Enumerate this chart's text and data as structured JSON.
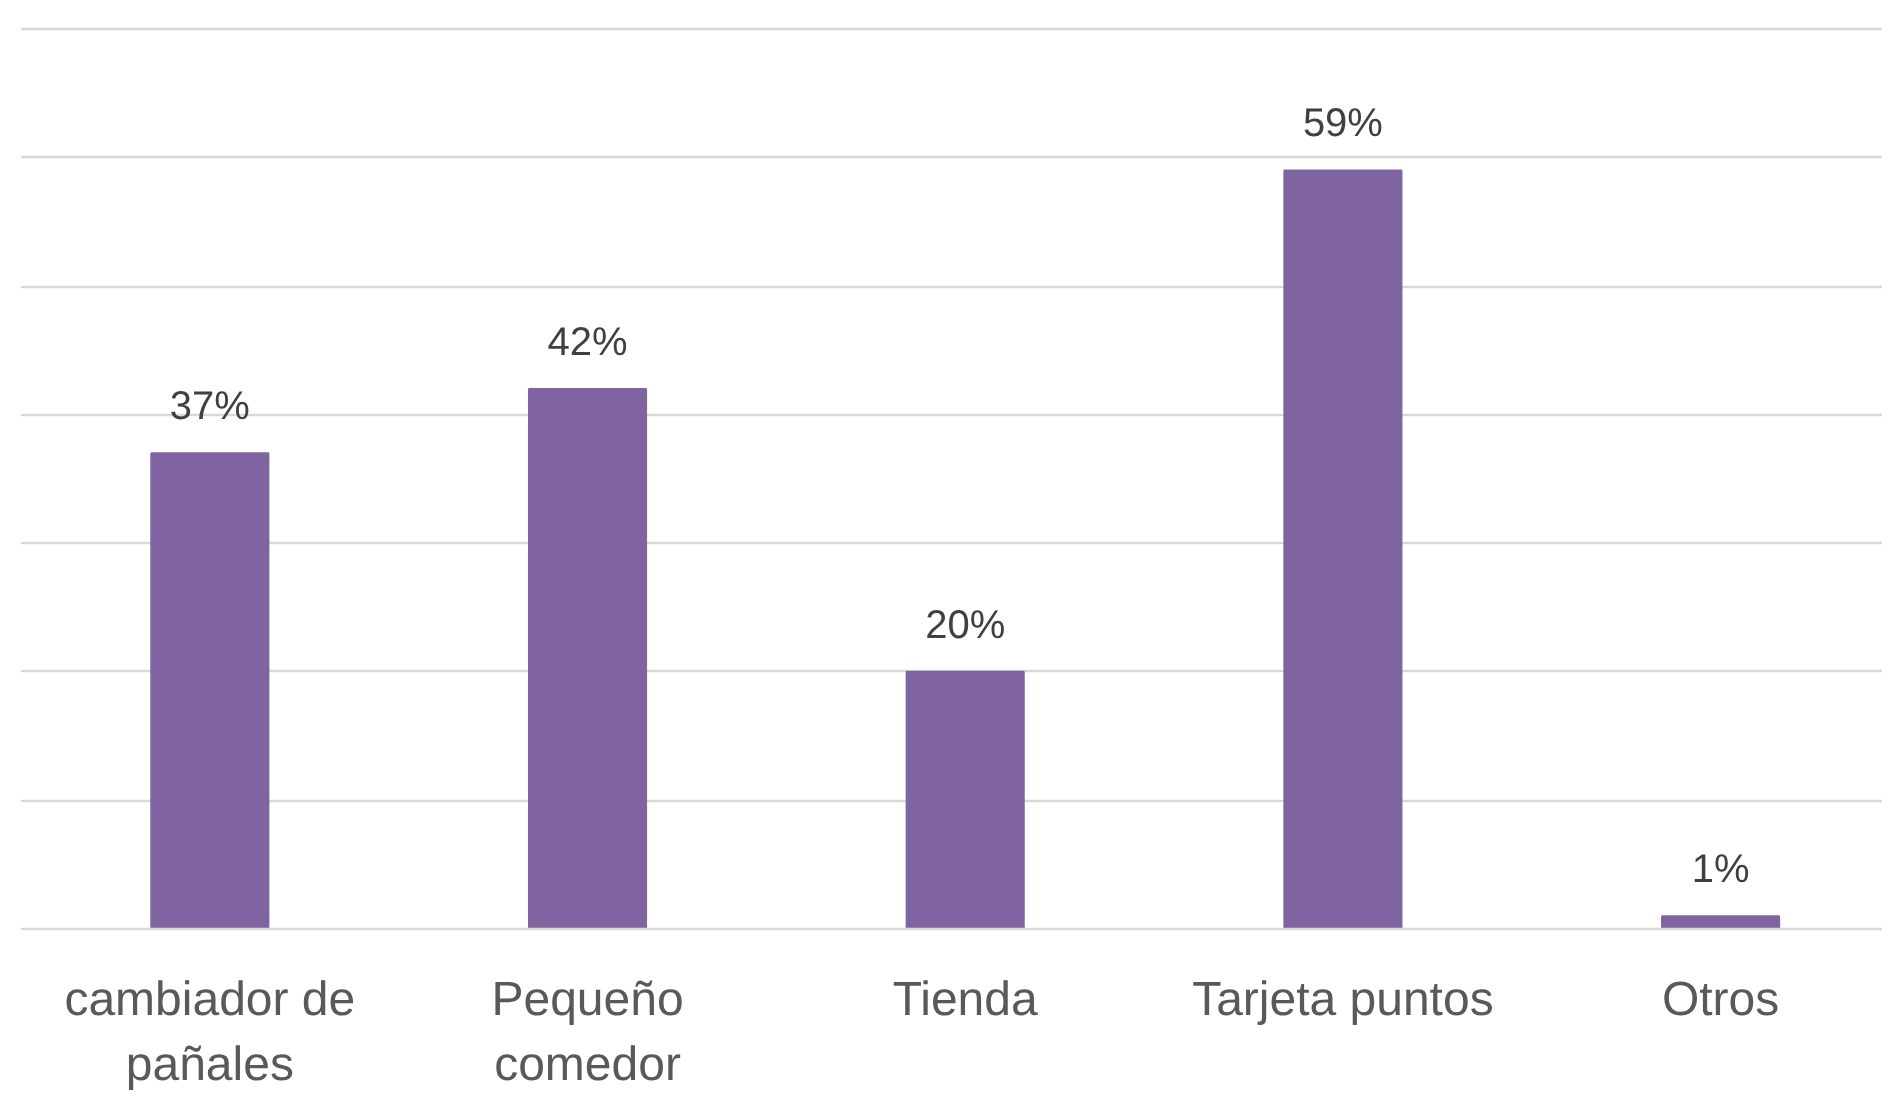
{
  "chart_data": {
    "type": "bar",
    "categories": [
      "cambiador de pañales",
      "Pequeño comedor",
      "Tienda",
      "Tarjeta puntos",
      "Otros"
    ],
    "values": [
      37,
      42,
      20,
      59,
      1
    ],
    "value_labels": [
      "37%",
      "42%",
      "20%",
      "59%",
      "1%"
    ],
    "color": "#8064a2",
    "ylim": [
      0,
      70
    ],
    "yticks": [
      {
        "value": 0,
        "label": null
      },
      {
        "value": 10,
        "label": null
      },
      {
        "value": 20,
        "label": null
      },
      {
        "value": 30,
        "label": null
      },
      {
        "value": 40,
        "label": null
      },
      {
        "value": 50,
        "label": null
      },
      {
        "value": 60,
        "label": null
      },
      {
        "value": 70,
        "label": null
      }
    ],
    "grid": "y",
    "tick_labels": "x",
    "legend": false
  }
}
